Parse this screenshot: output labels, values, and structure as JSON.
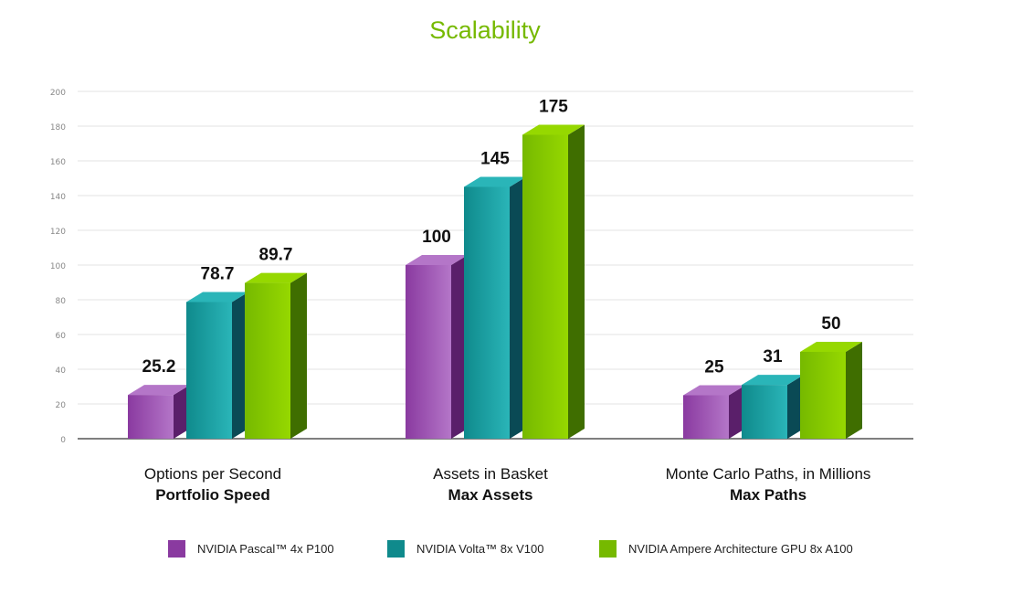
{
  "chart_data": {
    "type": "bar",
    "title": "Scalability",
    "categories": [
      {
        "line1": "Options per Second",
        "line2": "Portfolio Speed"
      },
      {
        "line1": "Assets in Basket",
        "line2": "Max Assets"
      },
      {
        "line1": "Monte Carlo Paths, in Millions",
        "line2": "Max Paths"
      }
    ],
    "series": [
      {
        "name": "NVIDIA Pascal™ 4x P100",
        "values": [
          25.2,
          100,
          25
        ],
        "labels": [
          "25.2",
          "100",
          "25"
        ],
        "color": "#8a3aa0",
        "light": "#b476c8",
        "dark": "#5a1f6a"
      },
      {
        "name": "NVIDIA Volta™ 8x V100",
        "values": [
          78.7,
          145,
          31
        ],
        "labels": [
          "78.7",
          "145",
          "31"
        ],
        "color": "#0f8a8c",
        "light": "#2ab5b8",
        "dark": "#0a4a55"
      },
      {
        "name": "NVIDIA Ampere Architecture GPU 8x A100",
        "values": [
          89.7,
          175,
          50
        ],
        "labels": [
          "89.7",
          "175",
          "50"
        ],
        "color": "#76b900",
        "light": "#96d800",
        "dark": "#3f6e00"
      }
    ],
    "yticks": [
      "0",
      "20",
      "40",
      "60",
      "80",
      "100",
      "120",
      "140",
      "160",
      "180",
      "200"
    ],
    "ylim": [
      0,
      200
    ],
    "grid": true,
    "legend": "bottom",
    "title_color": "#76b900"
  }
}
